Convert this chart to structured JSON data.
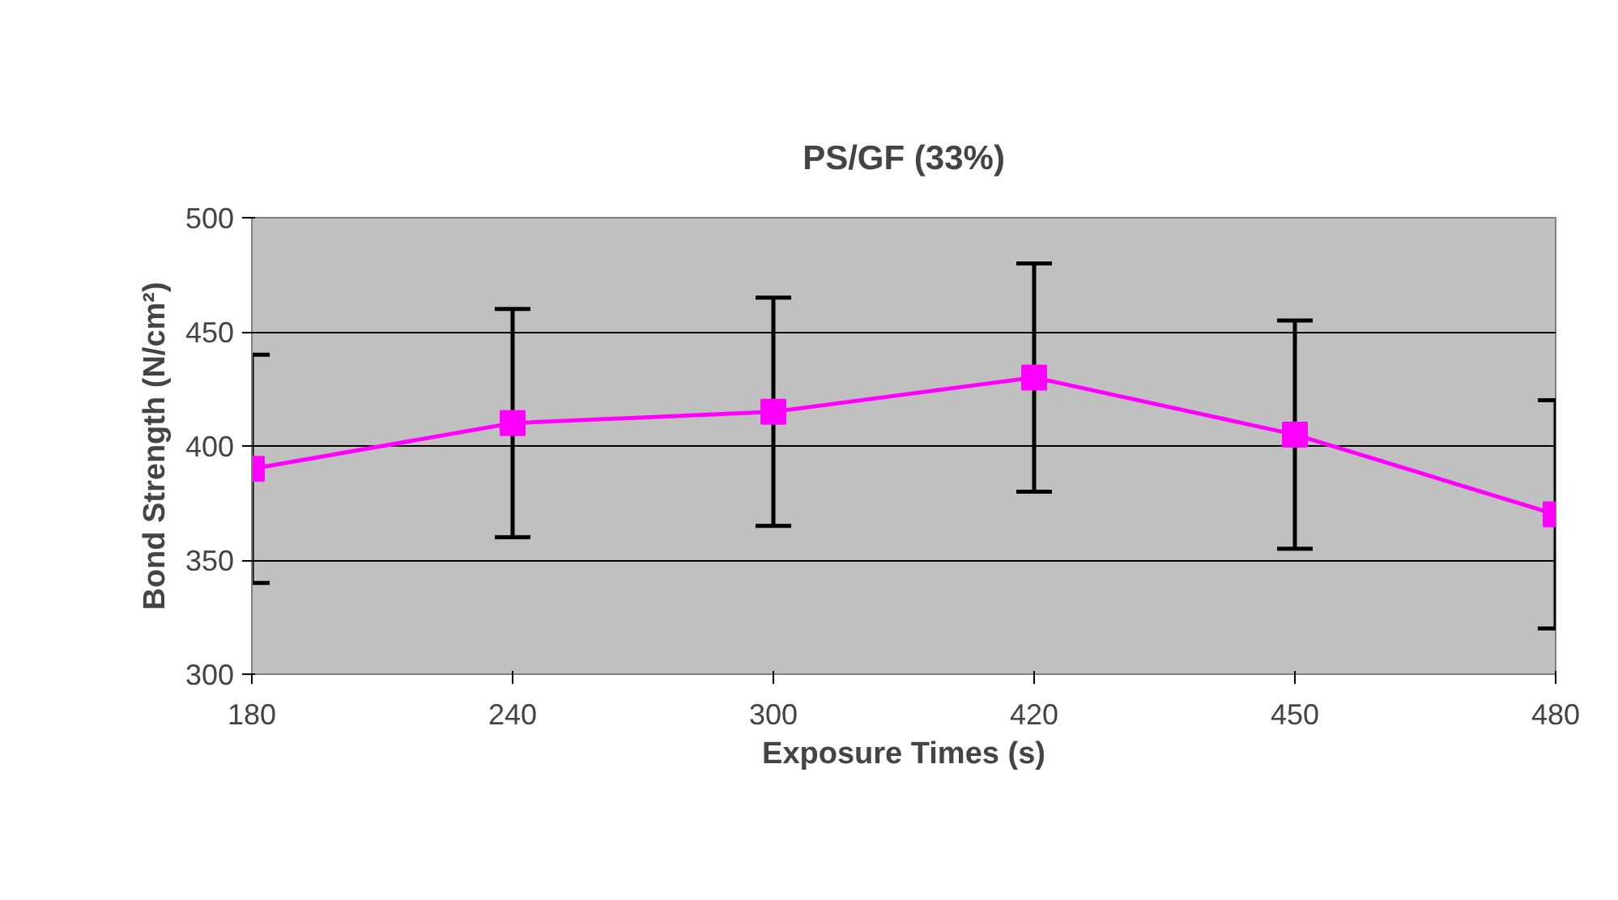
{
  "chart_data": {
    "type": "line",
    "title": "PS/GF (33%)",
    "xlabel": "Exposure Times (s)",
    "ylabel": "Bond Strength (N/cm²)",
    "categories": [
      "180",
      "240",
      "300",
      "420",
      "450",
      "480"
    ],
    "series": [
      {
        "color": "#ff00ff",
        "values": [
          390,
          410,
          415,
          430,
          405,
          370
        ],
        "errors": [
          50,
          50,
          50,
          50,
          50,
          50
        ]
      }
    ],
    "ylim": [
      300,
      500
    ],
    "yticks": [
      300,
      350,
      400,
      450,
      500
    ],
    "grid": "y",
    "marker": "square",
    "line_style": "solid"
  }
}
